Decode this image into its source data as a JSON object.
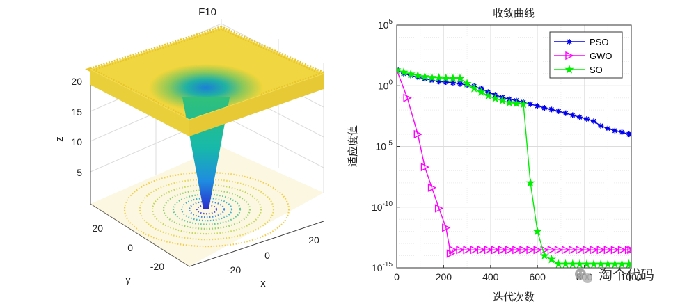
{
  "chart_data": [
    {
      "type": "surface",
      "title": "F10",
      "xlabel": "x",
      "ylabel": "y",
      "zlabel": "z",
      "x_ticks": [
        "-20",
        "0",
        "20"
      ],
      "y_ticks": [
        "-20",
        "0",
        "20"
      ],
      "z_ticks": [
        "5",
        "10",
        "15",
        "20"
      ],
      "xlim": [
        -32,
        32
      ],
      "ylim": [
        -32,
        32
      ],
      "zlim": [
        0,
        22
      ],
      "grid": true,
      "colormap": "parula",
      "surface_plateau_z": 21,
      "contour_plane_z": 0
    },
    {
      "type": "line",
      "title": "收敛曲线",
      "xlabel": "迭代次数",
      "ylabel": "适应度值",
      "yscale": "log",
      "xlim": [
        0,
        1000
      ],
      "ylim": [
        1e-15,
        100000.0
      ],
      "x_ticks": [
        "0",
        "200",
        "400",
        "600",
        "800",
        "1000"
      ],
      "y_ticks": [
        {
          "base": "10",
          "exp": "5",
          "value": 5
        },
        {
          "base": "10",
          "exp": "0",
          "value": 0
        },
        {
          "base": "10",
          "exp": "-5",
          "value": -5
        },
        {
          "base": "10",
          "exp": "-10",
          "value": -10
        },
        {
          "base": "10",
          "exp": "-15",
          "value": -15
        }
      ],
      "grid": true,
      "legend_position": "top-right",
      "series": [
        {
          "name": "PSO",
          "color": "#0000ee",
          "marker": "asterisk",
          "x": [
            0,
            30,
            60,
            90,
            120,
            150,
            180,
            210,
            240,
            270,
            300,
            330,
            360,
            390,
            420,
            450,
            480,
            510,
            540,
            570,
            600,
            630,
            660,
            690,
            720,
            750,
            780,
            810,
            840,
            870,
            900,
            930,
            960,
            990,
            1000
          ],
          "y": [
            20,
            10,
            7,
            5,
            3.8,
            2.8,
            2.2,
            2,
            1.8,
            1.4,
            1.2,
            0.9,
            0.55,
            0.3,
            0.18,
            0.11,
            0.08,
            0.06,
            0.045,
            0.03,
            0.022,
            0.015,
            0.011,
            0.008,
            0.0055,
            0.0038,
            0.0026,
            0.0018,
            0.0012,
            0.0005,
            0.0003,
            0.0002,
            0.00015,
            0.0001,
            0.0001
          ]
        },
        {
          "name": "GWO",
          "color": "#ff00ff",
          "marker": "triangle-right",
          "x": [
            0,
            45,
            90,
            120,
            150,
            180,
            210,
            230,
            240,
            270,
            300,
            330,
            360,
            390,
            420,
            450,
            480,
            510,
            540,
            570,
            600,
            630,
            660,
            690,
            720,
            750,
            780,
            810,
            840,
            870,
            900,
            930,
            960,
            990,
            1000
          ],
          "y": [
            20,
            0.1,
            0.0001,
            2e-07,
            4e-09,
            8e-11,
            2e-12,
            1.5e-14,
            3e-14,
            3e-14,
            3e-14,
            3e-14,
            3e-14,
            3e-14,
            3e-14,
            3e-14,
            3e-14,
            3e-14,
            3e-14,
            3e-14,
            3e-14,
            3e-14,
            3e-14,
            3e-14,
            3e-14,
            3e-14,
            3e-14,
            3e-14,
            3e-14,
            3e-14,
            3e-14,
            3e-14,
            3e-14,
            3e-14,
            3e-14
          ]
        },
        {
          "name": "SO",
          "color": "#00ee00",
          "marker": "pentagram",
          "x": [
            0,
            30,
            60,
            90,
            120,
            150,
            180,
            210,
            240,
            270,
            300,
            330,
            360,
            390,
            420,
            450,
            480,
            510,
            540,
            570,
            600,
            630,
            660,
            690,
            720,
            750,
            780,
            810,
            840,
            870,
            900,
            930,
            960,
            990,
            1000
          ],
          "y": [
            20,
            13,
            9,
            7,
            5.5,
            4.8,
            4.5,
            4.2,
            4,
            4,
            1.5,
            0.6,
            0.3,
            0.15,
            0.09,
            0.06,
            0.04,
            0.035,
            0.03,
            1e-08,
            1e-12,
            1e-14,
            5e-15,
            2e-15,
            2e-15,
            2e-15,
            2e-15,
            2e-15,
            2e-15,
            2e-15,
            2e-15,
            2e-15,
            2e-15,
            2e-15,
            2e-15
          ]
        }
      ]
    }
  ],
  "watermark": {
    "text": "淘个代码",
    "icon": "wechat-icon"
  }
}
